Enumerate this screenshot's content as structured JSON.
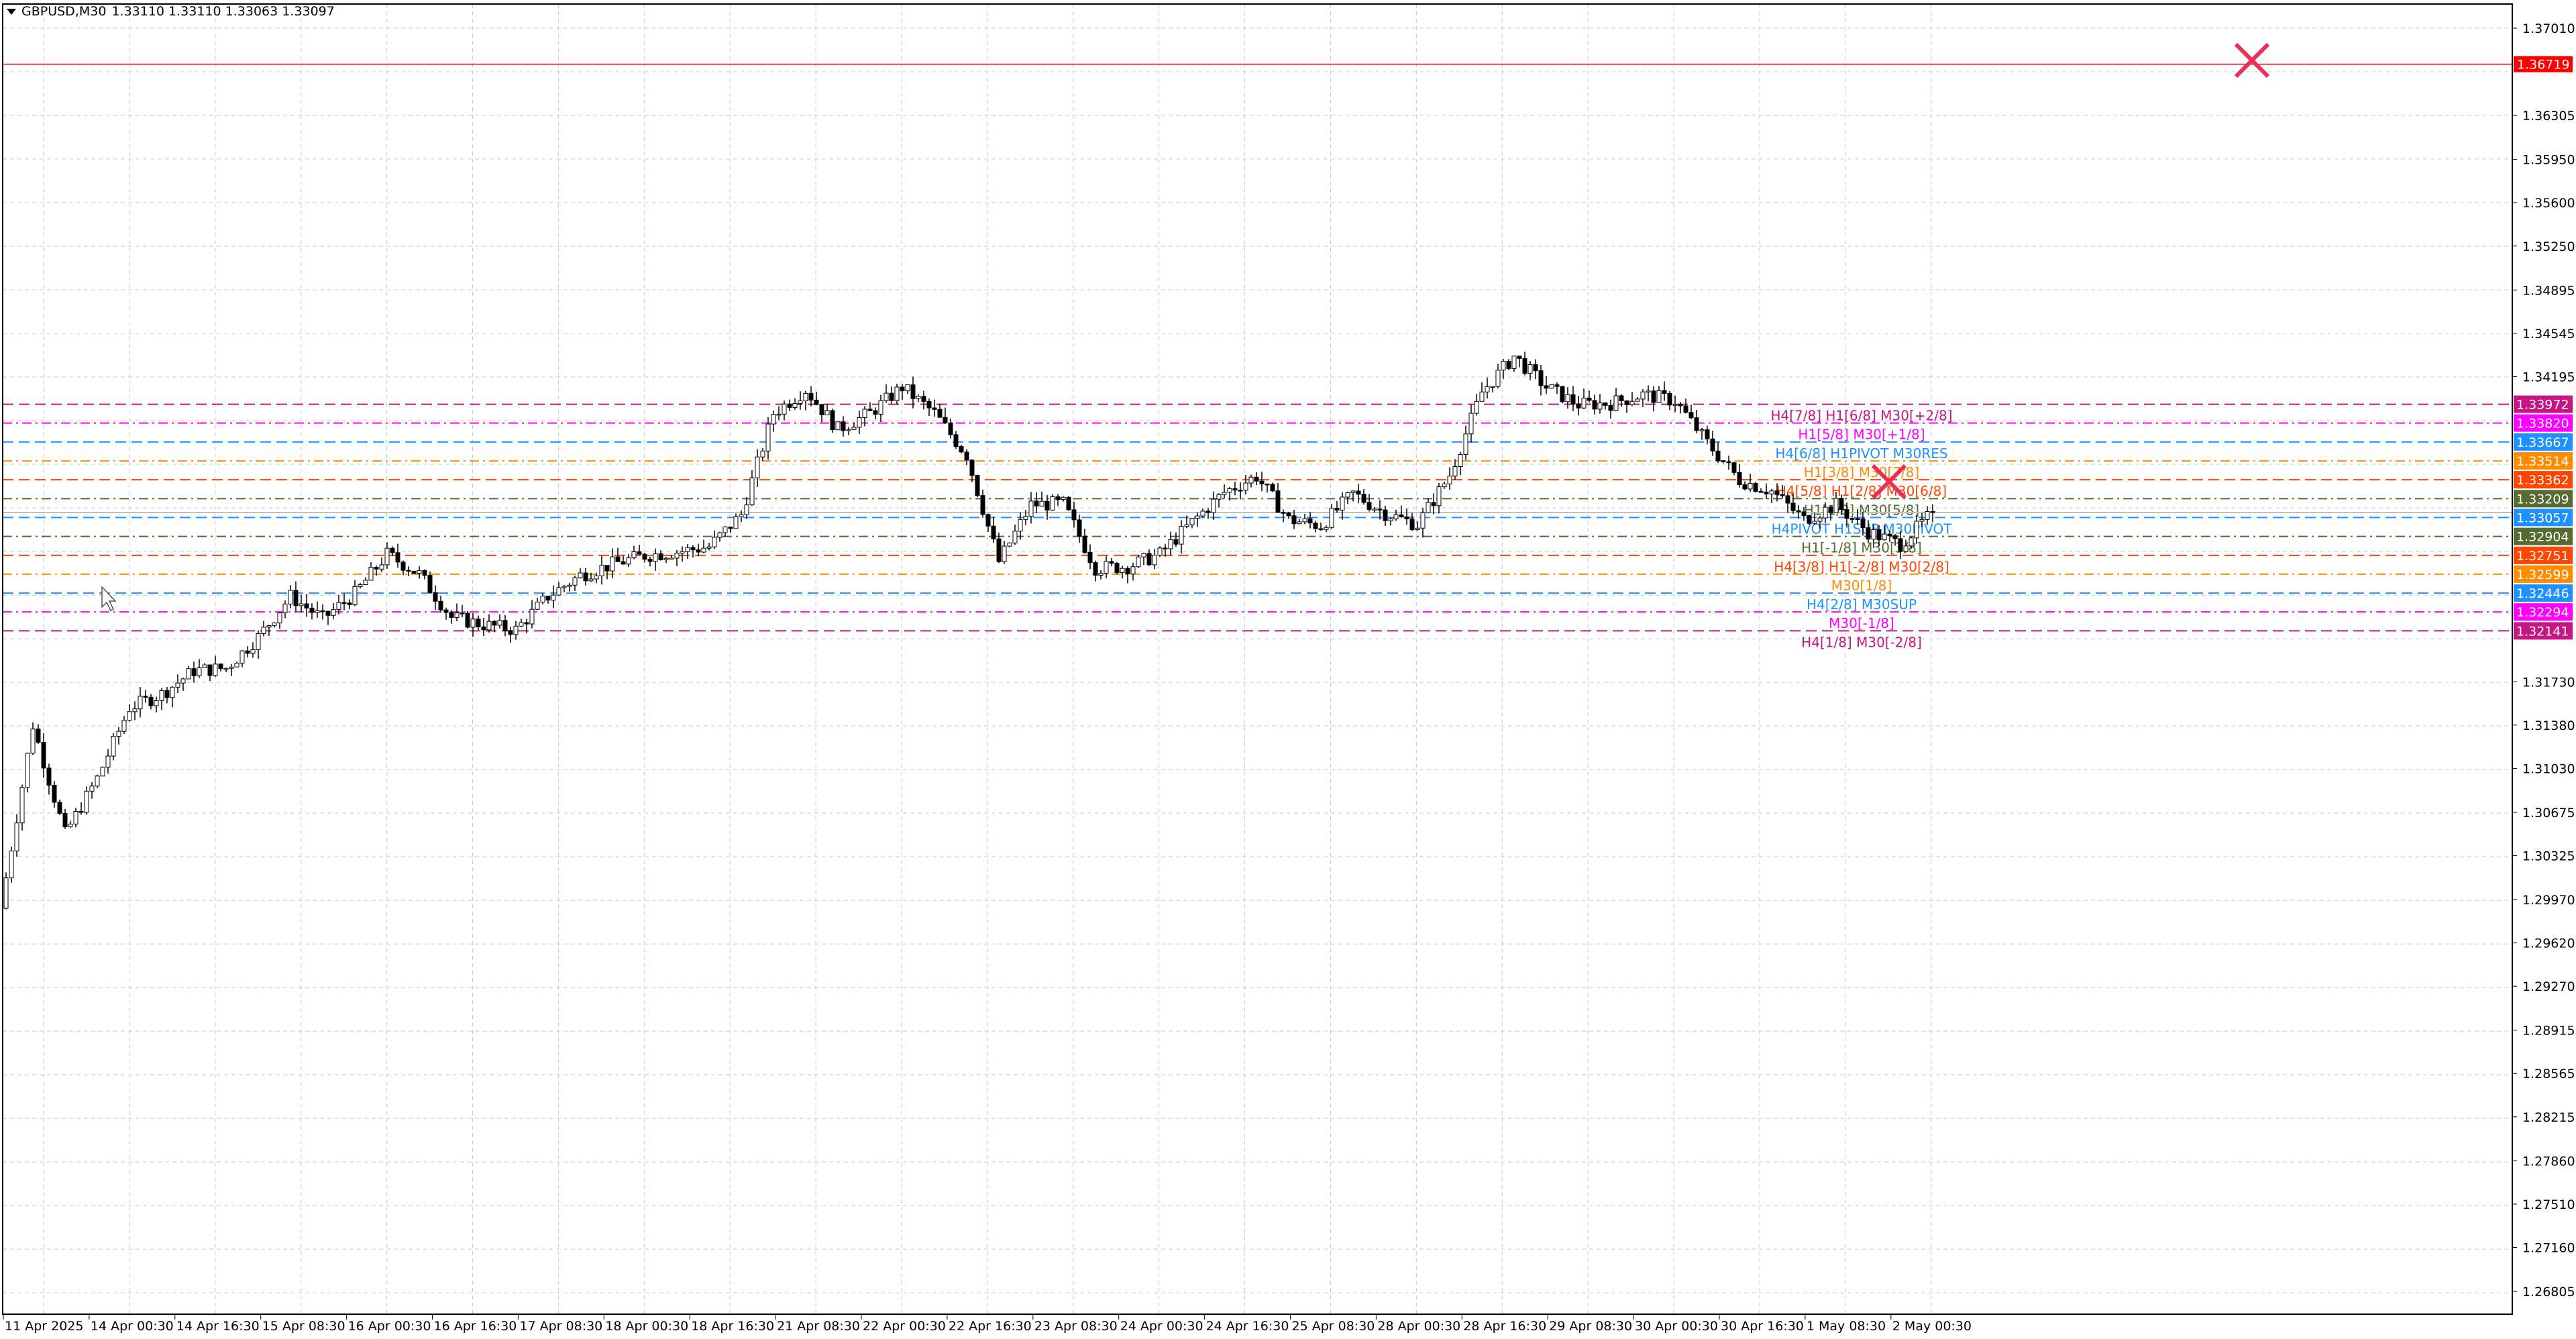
{
  "header": {
    "symbol": "GBPUSD,M30",
    "ohlc": "1.33110 1.33110 1.33063 1.33097"
  },
  "chart_data": {
    "type": "candlestick",
    "symbol": "GBPUSD",
    "timeframe": "M30",
    "grid": true,
    "ylim": [
      1.26805,
      1.3701
    ],
    "y_ticks": [
      "1.37010",
      "1.36305",
      "1.35950",
      "1.35600",
      "1.35250",
      "1.34895",
      "1.34545",
      "1.34195",
      "1.31730",
      "1.31380",
      "1.31030",
      "1.30675",
      "1.30325",
      "1.29970",
      "1.29620",
      "1.29270",
      "1.28915",
      "1.28565",
      "1.28215",
      "1.27860",
      "1.27510",
      "1.27160",
      "1.26805"
    ],
    "x_ticks": [
      "11 Apr 2025",
      "14 Apr 00:30",
      "14 Apr 16:30",
      "15 Apr 08:30",
      "16 Apr 00:30",
      "16 Apr 16:30",
      "17 Apr 08:30",
      "18 Apr 00:30",
      "18 Apr 16:30",
      "21 Apr 08:30",
      "22 Apr 00:30",
      "22 Apr 16:30",
      "23 Apr 08:30",
      "24 Apr 00:30",
      "24 Apr 16:30",
      "25 Apr 08:30",
      "28 Apr 00:30",
      "28 Apr 16:30",
      "29 Apr 08:30",
      "30 Apr 00:30",
      "30 Apr 16:30",
      "1 May 08:30",
      "2 May 00:30"
    ],
    "close_path_3h": [
      1.299,
      1.3138,
      1.305,
      1.3095,
      1.3152,
      1.3163,
      1.3182,
      1.3184,
      1.3209,
      1.3242,
      1.3224,
      1.3244,
      1.3276,
      1.326,
      1.3225,
      1.3219,
      1.3215,
      1.3242,
      1.3259,
      1.3268,
      1.3275,
      1.3278,
      1.3282,
      1.3308,
      1.339,
      1.3409,
      1.3377,
      1.339,
      1.3411,
      1.339,
      1.3356,
      1.327,
      1.3316,
      1.3317,
      1.3265,
      1.3266,
      1.3276,
      1.3302,
      1.3326,
      1.3339,
      1.3304,
      1.3299,
      1.3325,
      1.3309,
      1.33,
      1.334,
      1.3407,
      1.3436,
      1.3411,
      1.3397,
      1.3398,
      1.3405,
      1.34,
      1.3366,
      1.3336,
      1.3327,
      1.3304,
      1.3316,
      1.3294,
      1.3284,
      1.33097
    ],
    "current_price": "1.33097",
    "alert_line": {
      "price": "1.36719",
      "color": "#ff0000"
    },
    "levels": [
      {
        "price": "1.33972",
        "label": "H4[7/8] H1[6/8] M30[+2/8]",
        "color": "#c71585",
        "style": "dash"
      },
      {
        "price": "1.33820",
        "label": "H1[5/8] M30[+1/8]",
        "color": "#ff00ff",
        "style": "dashdot"
      },
      {
        "price": "1.33667",
        "label": "H4[6/8] H1PIVOT M30RES",
        "color": "#1e90ff",
        "style": "dash"
      },
      {
        "price": "1.33514",
        "label": "H1[3/8] M30[7/8]",
        "color": "#ff8c00",
        "style": "dashdot"
      },
      {
        "price": "1.33362",
        "label": "H4[5/8] H1[2/8] M30[6/8]",
        "color": "#ff4500",
        "style": "dash"
      },
      {
        "price": "1.33209",
        "label": "H1[1/8] M30[5/8]",
        "color": "#556b2f",
        "style": "dashdot"
      },
      {
        "price": "1.33057",
        "label": "H4PIVOT H1SUP M30PIVOT",
        "color": "#1e90ff",
        "style": "dash"
      },
      {
        "price": "1.32904",
        "label": "H1[-1/8] M30[3/8]",
        "color": "#556b2f",
        "style": "dashdot"
      },
      {
        "price": "1.32751",
        "label": "H4[3/8] H1[-2/8] M30[2/8]",
        "color": "#ff4500",
        "style": "dash"
      },
      {
        "price": "1.32599",
        "label": "M30[1/8]",
        "color": "#ff8c00",
        "style": "dashdot"
      },
      {
        "price": "1.32446",
        "label": "H4[2/8] M30SUP",
        "color": "#1e90ff",
        "style": "dash"
      },
      {
        "price": "1.32294",
        "label": "M30[-1/8]",
        "color": "#ff00ff",
        "style": "dashdot"
      },
      {
        "price": "1.32141",
        "label": "H4[1/8] M30[-2/8]",
        "color": "#c71585",
        "style": "dash"
      }
    ],
    "markers": [
      {
        "icon": "cross-icon",
        "color": "#e8305a",
        "where": "alert"
      },
      {
        "icon": "cross-icon",
        "color": "#e8305a",
        "where": "levels"
      }
    ]
  }
}
